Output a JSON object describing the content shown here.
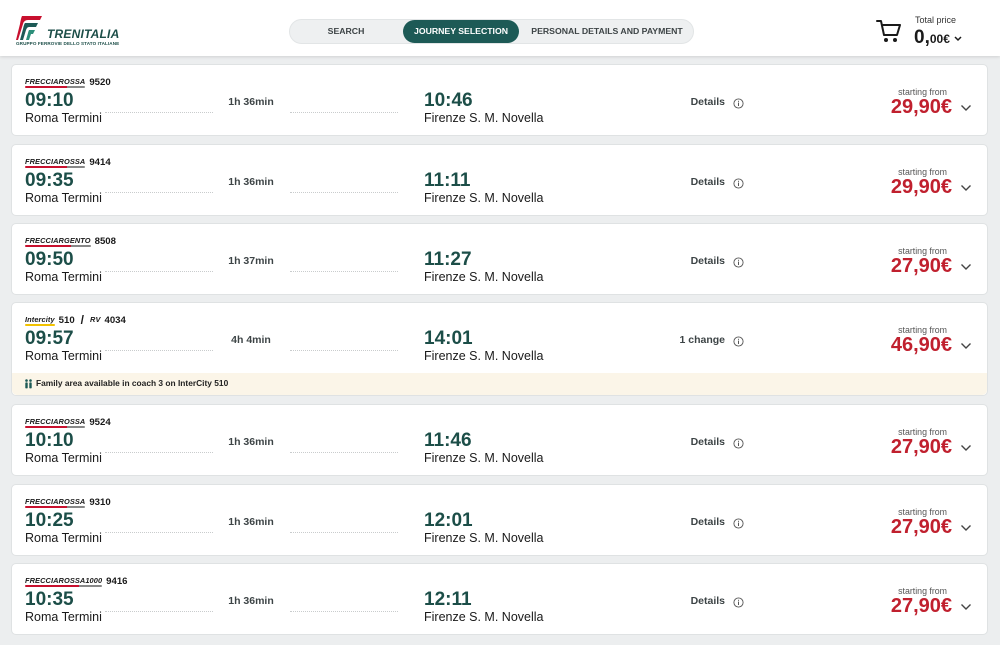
{
  "header": {
    "logo_text": "TRENITALIA",
    "logo_subtitle": "GRUPPO FERROVIE DELLO STATO ITALIANE",
    "steps": [
      {
        "label": "SEARCH",
        "active": false
      },
      {
        "label": "JOURNEY SELECTION",
        "active": true
      },
      {
        "label": "PERSONAL DETAILS AND PAYMENT",
        "active": false
      }
    ],
    "total_label": "Total price",
    "total_int": "0,",
    "total_dec": "00€",
    "cart_icon": "cart-icon"
  },
  "colors": {
    "brand_green": "#1d5a56",
    "time_green": "#1c4e48",
    "price_red": "#c0202e",
    "notice_bg": "#fbf5e8"
  },
  "journeys": [
    {
      "brand": "FRECCIAROSSA",
      "train": "9520",
      "dep_time": "09:10",
      "dep_station": "Roma Termini",
      "duration": "1h 36min",
      "arr_time": "10:46",
      "arr_station": "Firenze S. M. Novella",
      "details": "Details",
      "from_label": "starting from",
      "price": "29,90€"
    },
    {
      "brand": "FRECCIAROSSA",
      "train": "9414",
      "dep_time": "09:35",
      "dep_station": "Roma Termini",
      "duration": "1h 36min",
      "arr_time": "11:11",
      "arr_station": "Firenze S. M. Novella",
      "details": "Details",
      "from_label": "starting from",
      "price": "29,90€"
    },
    {
      "brand": "FRECCIARGENTO",
      "train": "8508",
      "dep_time": "09:50",
      "dep_station": "Roma Termini",
      "duration": "1h 37min",
      "arr_time": "11:27",
      "arr_station": "Firenze S. M. Novella",
      "details": "Details",
      "from_label": "starting from",
      "price": "27,90€"
    },
    {
      "brand": "Intercity",
      "train": "510",
      "sep": "/",
      "brand2": "RV",
      "train2": "4034",
      "dep_time": "09:57",
      "dep_station": "Roma Termini",
      "duration": "4h 4min",
      "arr_time": "14:01",
      "arr_station": "Firenze S. M. Novella",
      "details": "1 change",
      "from_label": "starting from",
      "price": "46,90€",
      "notice": "Family area available in coach 3 on InterCity 510"
    },
    {
      "brand": "FRECCIAROSSA",
      "train": "9524",
      "dep_time": "10:10",
      "dep_station": "Roma Termini",
      "duration": "1h 36min",
      "arr_time": "11:46",
      "arr_station": "Firenze S. M. Novella",
      "details": "Details",
      "from_label": "starting from",
      "price": "27,90€"
    },
    {
      "brand": "FRECCIAROSSA",
      "train": "9310",
      "dep_time": "10:25",
      "dep_station": "Roma Termini",
      "duration": "1h 36min",
      "arr_time": "12:01",
      "arr_station": "Firenze S. M. Novella",
      "details": "Details",
      "from_label": "starting from",
      "price": "27,90€"
    },
    {
      "brand": "FRECCIAROSSA1000",
      "train": "9416",
      "dep_time": "10:35",
      "dep_station": "Roma Termini",
      "duration": "1h 36min",
      "arr_time": "12:11",
      "arr_station": "Firenze S. M. Novella",
      "details": "Details",
      "from_label": "starting from",
      "price": "27,90€"
    }
  ]
}
